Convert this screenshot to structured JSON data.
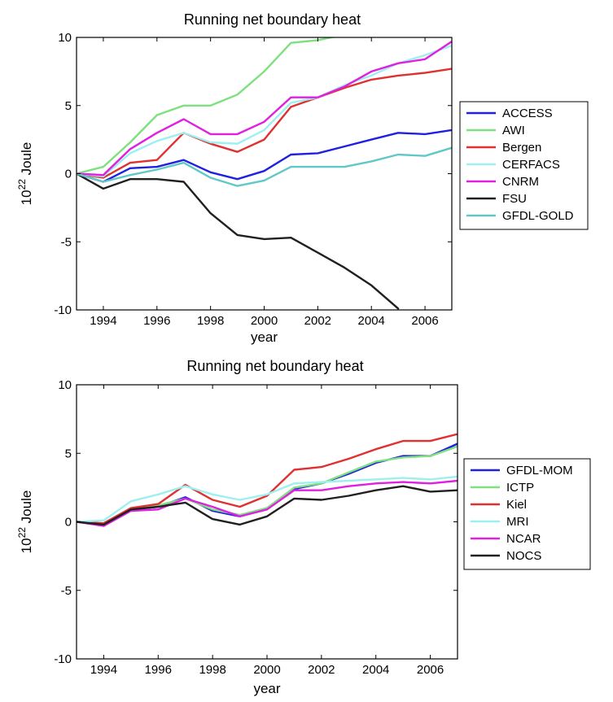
{
  "chart_data": [
    {
      "type": "line",
      "title": "Running net boundary heat",
      "xlabel": "year",
      "ylabel_base": "10",
      "ylabel_exp": "22",
      "ylabel_unit": " Joule",
      "xlim": [
        1993,
        2007
      ],
      "ylim": [
        -10,
        10
      ],
      "xticks": [
        1994,
        1996,
        1998,
        2000,
        2002,
        2004,
        2006
      ],
      "yticks": [
        -10,
        -5,
        0,
        5,
        10
      ],
      "legend_position": "right",
      "x": [
        1993,
        1994,
        1995,
        1996,
        1997,
        1998,
        1999,
        2000,
        2001,
        2002,
        2003,
        2004,
        2005,
        2006,
        2007
      ],
      "series": [
        {
          "name": "ACCESS",
          "color": "#2020e0",
          "values": [
            0,
            -0.6,
            0.4,
            0.5,
            1.0,
            0.1,
            -0.4,
            0.2,
            1.4,
            1.5,
            2.0,
            2.5,
            3.0,
            2.9,
            3.2
          ]
        },
        {
          "name": "AWI",
          "color": "#7ee07e",
          "values": [
            0,
            0.5,
            2.3,
            4.3,
            5.0,
            5.0,
            5.8,
            7.5,
            9.6,
            9.8,
            10.2,
            null,
            null,
            null,
            null
          ]
        },
        {
          "name": "Bergen",
          "color": "#e03030",
          "values": [
            0,
            -0.3,
            0.8,
            1.0,
            3.0,
            2.2,
            1.6,
            2.5,
            4.9,
            5.6,
            6.3,
            6.9,
            7.2,
            7.4,
            7.7
          ]
        },
        {
          "name": "CERFACS",
          "color": "#9ef0f0",
          "values": [
            0,
            -0.2,
            1.5,
            2.4,
            3.0,
            2.3,
            2.2,
            3.2,
            5.2,
            5.6,
            6.5,
            7.2,
            8.1,
            8.7,
            9.4
          ]
        },
        {
          "name": "CNRM",
          "color": "#e020e0",
          "values": [
            0,
            -0.1,
            1.8,
            3.0,
            4.0,
            2.9,
            2.9,
            3.8,
            5.6,
            5.6,
            6.4,
            7.5,
            8.1,
            8.4,
            9.7
          ]
        },
        {
          "name": "FSU",
          "color": "#202020",
          "values": [
            0,
            -1.1,
            -0.4,
            -0.4,
            -0.6,
            -2.9,
            -4.5,
            -4.8,
            -4.7,
            -5.8,
            -6.9,
            -8.2,
            -9.9,
            null,
            null
          ]
        },
        {
          "name": "GFDL-GOLD",
          "color": "#60c8c8",
          "values": [
            0,
            -0.6,
            -0.1,
            0.3,
            0.8,
            -0.3,
            -0.9,
            -0.5,
            0.5,
            0.5,
            0.5,
            0.9,
            1.4,
            1.3,
            1.9
          ]
        }
      ]
    },
    {
      "type": "line",
      "title": "Running net boundary heat",
      "xlabel": "year",
      "ylabel_base": "10",
      "ylabel_exp": "22",
      "ylabel_unit": " Joule",
      "xlim": [
        1993,
        2007
      ],
      "ylim": [
        -10,
        10
      ],
      "xticks": [
        1994,
        1996,
        1998,
        2000,
        2002,
        2004,
        2006
      ],
      "yticks": [
        -10,
        -5,
        0,
        5,
        10
      ],
      "legend_position": "right",
      "x": [
        1993,
        1994,
        1995,
        1996,
        1997,
        1998,
        1999,
        2000,
        2001,
        2002,
        2003,
        2004,
        2005,
        2006,
        2007
      ],
      "series": [
        {
          "name": "GFDL-MOM",
          "color": "#2020e0",
          "values": [
            0,
            -0.2,
            0.9,
            1.1,
            1.8,
            0.8,
            0.4,
            1.0,
            2.4,
            2.8,
            3.5,
            4.3,
            4.8,
            4.8,
            5.7
          ]
        },
        {
          "name": "ICTP",
          "color": "#7ee07e",
          "values": [
            0,
            -0.2,
            0.9,
            1.2,
            1.7,
            0.9,
            0.5,
            1.0,
            2.5,
            2.8,
            3.6,
            4.4,
            4.7,
            4.8,
            5.5
          ]
        },
        {
          "name": "Kiel",
          "color": "#e03030",
          "values": [
            0,
            -0.1,
            1.0,
            1.3,
            2.7,
            1.6,
            1.1,
            1.9,
            3.8,
            4.0,
            4.6,
            5.3,
            5.9,
            5.9,
            6.4
          ]
        },
        {
          "name": "MRI",
          "color": "#9ef0f0",
          "values": [
            0,
            0.1,
            1.5,
            2.0,
            2.6,
            2.0,
            1.6,
            2.0,
            2.8,
            2.9,
            3.0,
            3.1,
            3.2,
            3.1,
            3.3
          ]
        },
        {
          "name": "NCAR",
          "color": "#e020e0",
          "values": [
            0,
            -0.3,
            0.8,
            0.9,
            1.7,
            1.1,
            0.4,
            0.9,
            2.3,
            2.3,
            2.6,
            2.8,
            2.9,
            2.8,
            3.0
          ]
        },
        {
          "name": "NOCS",
          "color": "#202020",
          "values": [
            0,
            -0.2,
            0.9,
            1.1,
            1.4,
            0.2,
            -0.2,
            0.4,
            1.7,
            1.6,
            1.9,
            2.3,
            2.6,
            2.2,
            2.3
          ]
        }
      ]
    }
  ]
}
